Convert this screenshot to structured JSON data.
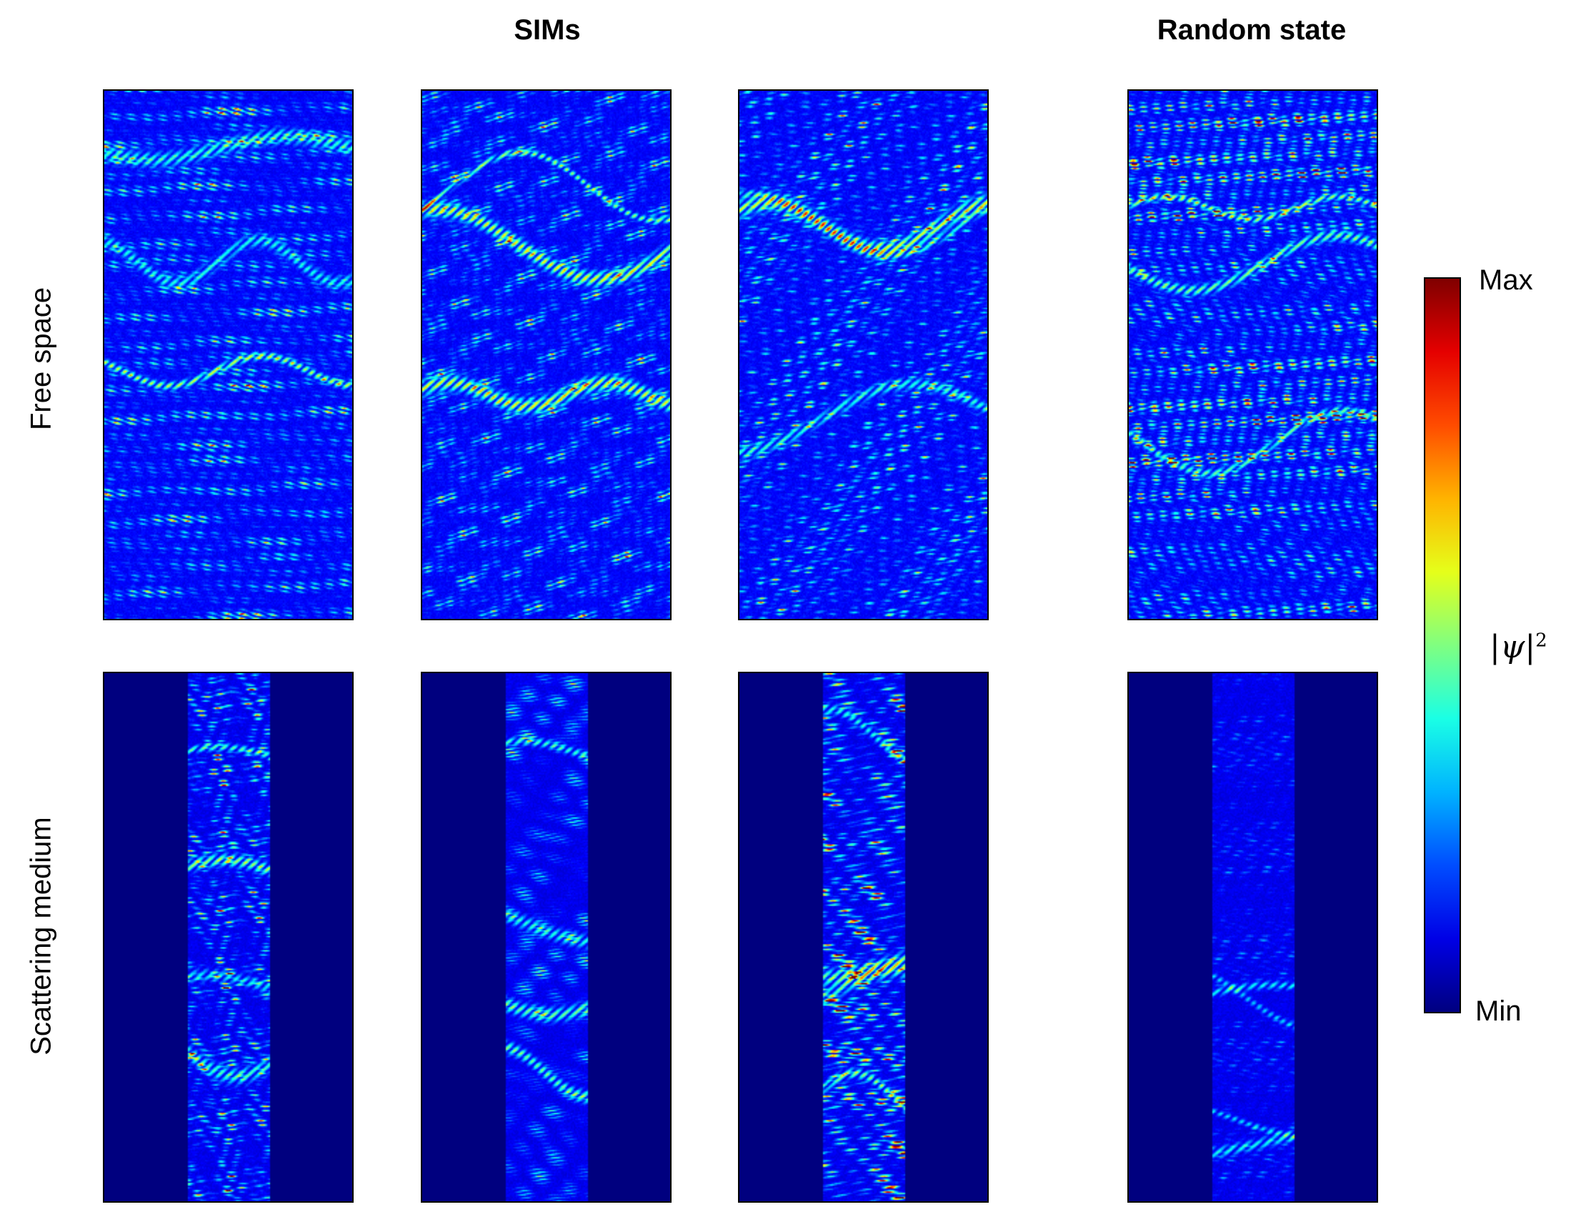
{
  "columns": {
    "sims": "SIMs",
    "random": "Random state"
  },
  "rows": {
    "free_space": "Free space",
    "scattering": "Scattering medium"
  },
  "colorbar": {
    "max_label": "Max",
    "min_label": "Min",
    "quantity_label": "|ψ|",
    "quantity_exponent": "2",
    "colormap": "jet"
  },
  "colors": {
    "background": "#00007f",
    "frame": "#000000"
  },
  "chart_data": {
    "type": "heatmap",
    "title": "",
    "panels": [
      {
        "row": "Free space",
        "column": "SIMs",
        "index": 1,
        "scattering_strip": false
      },
      {
        "row": "Free space",
        "column": "SIMs",
        "index": 2,
        "scattering_strip": false
      },
      {
        "row": "Free space",
        "column": "SIMs",
        "index": 3,
        "scattering_strip": false
      },
      {
        "row": "Free space",
        "column": "Random state",
        "index": 1,
        "scattering_strip": false
      },
      {
        "row": "Scattering medium",
        "column": "SIMs",
        "index": 1,
        "scattering_strip": true
      },
      {
        "row": "Scattering medium",
        "column": "SIMs",
        "index": 2,
        "scattering_strip": true
      },
      {
        "row": "Scattering medium",
        "column": "SIMs",
        "index": 3,
        "scattering_strip": true
      },
      {
        "row": "Scattering medium",
        "column": "Random state",
        "index": 1,
        "scattering_strip": true
      }
    ],
    "colorscale": {
      "min": "Min",
      "max": "Max"
    },
    "grid": false
  }
}
